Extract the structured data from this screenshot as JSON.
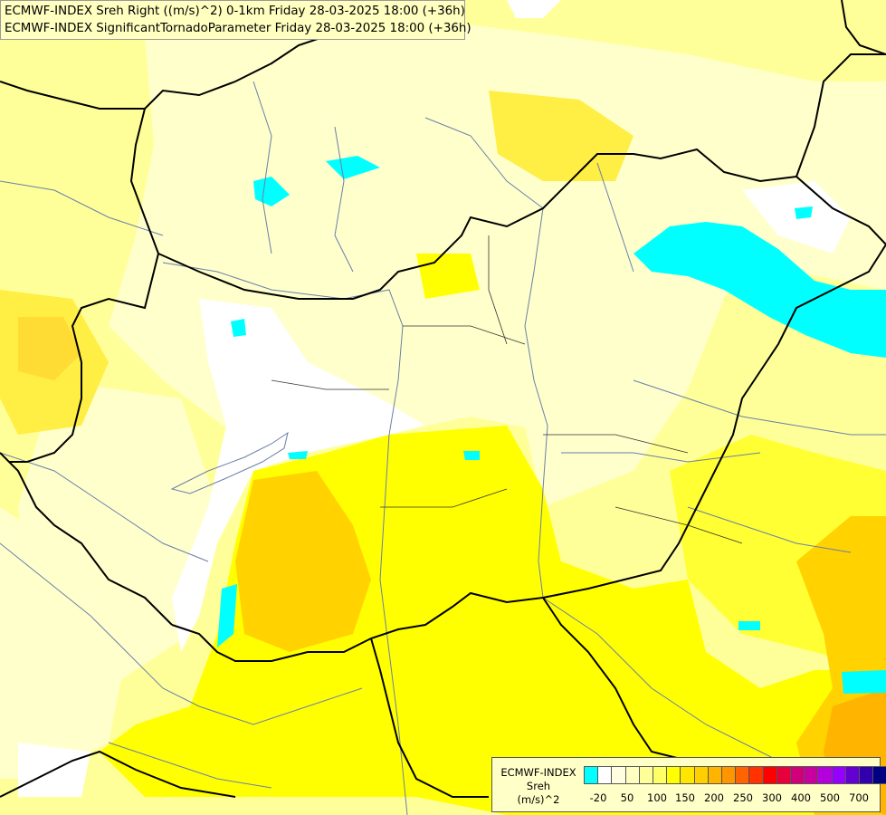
{
  "title": {
    "line1": "ECMWF-INDEX Sreh Right ((m/s)^2) 0-1km Friday 28-03-2025 18:00 (+36h)",
    "line2": "ECMWF-INDEX SignificantTornadoParameter Friday 28-03-2025 18:00 (+36h)"
  },
  "legend": {
    "line1": "ECMWF-INDEX",
    "line2": "Sreh",
    "line3": "(m/s)^2",
    "swatch_colors": [
      "#00ffff",
      "#ffffff",
      "#ffffe0",
      "#ffffc0",
      "#ffff99",
      "#ffff66",
      "#ffff00",
      "#ffe600",
      "#ffd000",
      "#ffb400",
      "#ff9600",
      "#ff6400",
      "#ff3200",
      "#ff0000",
      "#e8003c",
      "#d20078",
      "#c800a0",
      "#b400dc",
      "#9600ff",
      "#6400d2",
      "#3200aa",
      "#000080"
    ],
    "ticks": [
      "-20",
      "50",
      "100",
      "150",
      "200",
      "250",
      "300",
      "400",
      "500",
      "700"
    ]
  }
}
